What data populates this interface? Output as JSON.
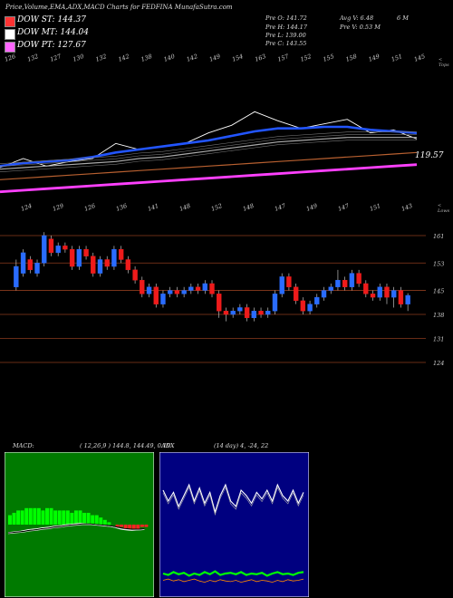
{
  "header": {
    "title": "Price,Volume,EMA,ADX,MACD Charts for FEDFINA MunafaSutra.com",
    "legend": [
      {
        "label": "DOW ST: 144.37",
        "color": "#ff3333"
      },
      {
        "label": "DOW MT: 144.04",
        "color": "#ffffff"
      },
      {
        "label": "DOW PT: 127.67",
        "color": "#ff66ff"
      }
    ],
    "ohlc": {
      "open": "Pre  O: 141.72",
      "high": "Pre  H: 144.17",
      "low": "Pre  L: 139.00",
      "close": "Pre  C: 143.55",
      "avg": "Avg V: 6.48",
      "avg_unit": "6  M",
      "vol": "Pre  V: 0.53 M"
    }
  },
  "ema_panel": {
    "top_ticks": [
      "126",
      "132",
      "127",
      "130",
      "132",
      "142",
      "138",
      "140",
      "142",
      "149",
      "154",
      "163",
      "157",
      "152",
      "155",
      "158",
      "149",
      "151",
      "145"
    ],
    "right_label_top": "< Tops",
    "right_label_bottom": "< Lows",
    "bottom_ticks": [
      "124",
      "129",
      "126",
      "136",
      "141",
      "148",
      "152",
      "148",
      "147",
      "149",
      "147",
      "151",
      "143"
    ],
    "price_label": "119.57"
  },
  "candle_panel": {
    "price_labels": [
      "161",
      "153",
      "145",
      "138",
      "131",
      "124"
    ]
  },
  "macd": {
    "label": "MACD:",
    "params": "( 12,26,9 ) 144.8,  144.49,  0.19"
  },
  "adx": {
    "label": "ADX",
    "params": "(14  day) 4,  -24,  22"
  },
  "chart_data": [
    {
      "type": "line",
      "title": "Price, EMA",
      "series": [
        {
          "values": [
            126,
            132,
            127,
            130,
            132,
            142,
            138,
            140,
            142,
            149,
            154,
            163,
            157,
            152,
            155,
            158,
            149,
            151,
            145
          ]
        },
        {
          "values": [
            127,
            129,
            130,
            131,
            133,
            136,
            138,
            140,
            142,
            144,
            147,
            150,
            152,
            152,
            153,
            153,
            151,
            150,
            149
          ]
        },
        {
          "values": [
            125,
            126,
            127,
            128,
            129,
            130,
            132,
            133,
            135,
            137,
            139,
            141,
            143,
            144,
            145,
            146,
            146,
            146,
            146
          ]
        },
        {
          "values": [
            118,
            119,
            120,
            121,
            122,
            123,
            124,
            125,
            126,
            127,
            128,
            129,
            130,
            131,
            132,
            133,
            134,
            135,
            136
          ]
        },
        {
          "values": [
            110,
            111,
            112,
            113,
            114,
            115,
            116,
            117,
            118,
            119,
            120,
            121,
            122,
            123,
            124,
            125,
            126,
            127,
            128
          ]
        }
      ],
      "color_map": [
        "#ffffff",
        "#2255ff",
        "#aaaaaa",
        "#b86030",
        "#ff40ff"
      ]
    },
    {
      "type": "bar",
      "title": "Candles",
      "ylim": [
        124,
        161
      ],
      "candles": [
        {
          "o": 146,
          "c": 152,
          "h": 154,
          "l": 145
        },
        {
          "o": 150,
          "c": 156,
          "h": 157,
          "l": 149
        },
        {
          "o": 154,
          "c": 151,
          "h": 155,
          "l": 150
        },
        {
          "o": 150,
          "c": 153,
          "h": 154,
          "l": 149
        },
        {
          "o": 153,
          "c": 161,
          "h": 162,
          "l": 152
        },
        {
          "o": 160,
          "c": 156,
          "h": 161,
          "l": 155
        },
        {
          "o": 156,
          "c": 158,
          "h": 159,
          "l": 155
        },
        {
          "o": 158,
          "c": 157,
          "h": 159,
          "l": 156
        },
        {
          "o": 157,
          "c": 152,
          "h": 158,
          "l": 151
        },
        {
          "o": 152,
          "c": 157,
          "h": 158,
          "l": 151
        },
        {
          "o": 157,
          "c": 155,
          "h": 158,
          "l": 154
        },
        {
          "o": 155,
          "c": 150,
          "h": 156,
          "l": 149
        },
        {
          "o": 150,
          "c": 154,
          "h": 155,
          "l": 149
        },
        {
          "o": 154,
          "c": 152,
          "h": 155,
          "l": 151
        },
        {
          "o": 152,
          "c": 157,
          "h": 158,
          "l": 151
        },
        {
          "o": 157,
          "c": 154,
          "h": 158,
          "l": 153
        },
        {
          "o": 154,
          "c": 151,
          "h": 155,
          "l": 150
        },
        {
          "o": 151,
          "c": 148,
          "h": 152,
          "l": 147
        },
        {
          "o": 148,
          "c": 144,
          "h": 149,
          "l": 143
        },
        {
          "o": 144,
          "c": 146,
          "h": 147,
          "l": 143
        },
        {
          "o": 146,
          "c": 141,
          "h": 147,
          "l": 140
        },
        {
          "o": 141,
          "c": 144,
          "h": 145,
          "l": 140
        },
        {
          "o": 144,
          "c": 145,
          "h": 146,
          "l": 143
        },
        {
          "o": 145,
          "c": 144,
          "h": 146,
          "l": 143
        },
        {
          "o": 144,
          "c": 145,
          "h": 146,
          "l": 143
        },
        {
          "o": 145,
          "c": 146,
          "h": 147,
          "l": 144
        },
        {
          "o": 146,
          "c": 145,
          "h": 147,
          "l": 144
        },
        {
          "o": 145,
          "c": 147,
          "h": 148,
          "l": 144
        },
        {
          "o": 147,
          "c": 144,
          "h": 148,
          "l": 143
        },
        {
          "o": 144,
          "c": 139,
          "h": 145,
          "l": 137
        },
        {
          "o": 139,
          "c": 138,
          "h": 140,
          "l": 136
        },
        {
          "o": 138,
          "c": 139,
          "h": 140,
          "l": 137
        },
        {
          "o": 139,
          "c": 140,
          "h": 141,
          "l": 138
        },
        {
          "o": 140,
          "c": 137,
          "h": 141,
          "l": 136
        },
        {
          "o": 137,
          "c": 139,
          "h": 140,
          "l": 136
        },
        {
          "o": 139,
          "c": 138,
          "h": 140,
          "l": 137
        },
        {
          "o": 138,
          "c": 139,
          "h": 140,
          "l": 137
        },
        {
          "o": 139,
          "c": 144,
          "h": 145,
          "l": 138
        },
        {
          "o": 144,
          "c": 149,
          "h": 150,
          "l": 143
        },
        {
          "o": 149,
          "c": 146,
          "h": 150,
          "l": 145
        },
        {
          "o": 146,
          "c": 142,
          "h": 147,
          "l": 141
        },
        {
          "o": 142,
          "c": 139,
          "h": 143,
          "l": 138
        },
        {
          "o": 139,
          "c": 141,
          "h": 142,
          "l": 138
        },
        {
          "o": 141,
          "c": 143,
          "h": 144,
          "l": 140
        },
        {
          "o": 143,
          "c": 145,
          "h": 146,
          "l": 142
        },
        {
          "o": 145,
          "c": 146,
          "h": 147,
          "l": 144
        },
        {
          "o": 146,
          "c": 148,
          "h": 151,
          "l": 145
        },
        {
          "o": 148,
          "c": 146,
          "h": 149,
          "l": 145
        },
        {
          "o": 146,
          "c": 150,
          "h": 151,
          "l": 145
        },
        {
          "o": 150,
          "c": 147,
          "h": 151,
          "l": 146
        },
        {
          "o": 147,
          "c": 144,
          "h": 148,
          "l": 143
        },
        {
          "o": 144,
          "c": 143,
          "h": 145,
          "l": 142
        },
        {
          "o": 143,
          "c": 146,
          "h": 147,
          "l": 142
        },
        {
          "o": 146,
          "c": 143,
          "h": 147,
          "l": 141
        },
        {
          "o": 143,
          "c": 145,
          "h": 146,
          "l": 140
        },
        {
          "o": 145,
          "c": 141,
          "h": 146,
          "l": 140
        },
        {
          "o": 141,
          "c": 143.55,
          "h": 144.17,
          "l": 139
        }
      ]
    },
    {
      "type": "area",
      "title": "MACD",
      "histogram": [
        4,
        5,
        6,
        6,
        7,
        7,
        7,
        7,
        6,
        7,
        7,
        6,
        6,
        6,
        6,
        5,
        6,
        6,
        5,
        5,
        4,
        4,
        3,
        2,
        1,
        0,
        -1,
        -1,
        -2,
        -2,
        -2,
        -2,
        -1,
        -1
      ],
      "macd": [
        1.5,
        2,
        2.5,
        3,
        4,
        5,
        5.5,
        6,
        7,
        7.5,
        8,
        9,
        9.5,
        10,
        11,
        11.5,
        12,
        12.5,
        12.5,
        12,
        11.5,
        11,
        10.5,
        10,
        9.5,
        8.5,
        7.5,
        6,
        5,
        4.5,
        4,
        4.5,
        5,
        5.5
      ],
      "signal": [
        1,
        1.5,
        2,
        2.5,
        3,
        4,
        4.5,
        5,
        6,
        6.5,
        7,
        8,
        8.5,
        9,
        10,
        10.5,
        11,
        11.5,
        12,
        12,
        12,
        11.5,
        11,
        10.5,
        10,
        9.5,
        8.5,
        7.5,
        6.5,
        6,
        5.5,
        5.5,
        5.5,
        6
      ]
    },
    {
      "type": "line",
      "title": "ADX",
      "series": [
        {
          "values": [
            40,
            30,
            38,
            25,
            35,
            45,
            30,
            42,
            28,
            38,
            20,
            35,
            45,
            30,
            25,
            40,
            35,
            28,
            38,
            32,
            40,
            30,
            45,
            35,
            30,
            40,
            28,
            38
          ]
        },
        {
          "values": [
            20,
            18,
            22,
            19,
            21,
            17,
            20,
            18,
            22,
            19,
            23,
            18,
            20,
            21,
            19,
            22,
            18,
            20,
            19,
            21,
            17,
            20,
            22,
            19,
            20,
            18,
            21,
            22
          ]
        },
        {
          "values": [
            15,
            17,
            14,
            16,
            13,
            15,
            17,
            14,
            12,
            15,
            13,
            16,
            14,
            13,
            15,
            12,
            14,
            16,
            13,
            15,
            14,
            12,
            15,
            13,
            16,
            14,
            15,
            17
          ]
        }
      ],
      "color_map": [
        "#ffffff",
        "#00ff00",
        "#ff8800"
      ]
    }
  ]
}
